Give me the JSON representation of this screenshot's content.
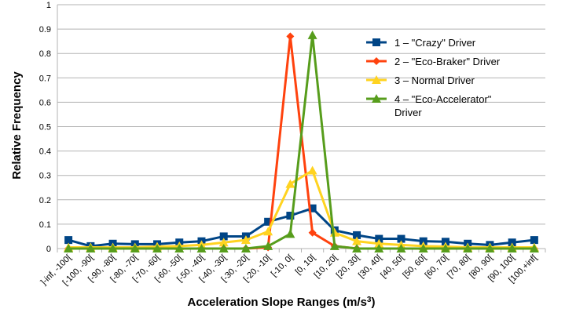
{
  "chart_data": {
    "type": "line",
    "title": "",
    "xlabel": "Acceleration Slope Ranges (m/s³)",
    "ylabel": "Relative Frequency",
    "ylim": [
      0,
      1
    ],
    "yticks": [
      "0",
      "0.1",
      "0.2",
      "0.3",
      "0.4",
      "0.5",
      "0.6",
      "0.7",
      "0.8",
      "0.9",
      "1"
    ],
    "grid": true,
    "legend_position": "top-right",
    "categories": [
      "]-inf, -100[",
      "[-100, -90[",
      "[-90, -80[",
      "[-80, -70[",
      "[-70, -60[",
      "[-60, -50[",
      "[-50, -40[",
      "[-40, -30[",
      "[-30, -20[",
      "[-20, -10[",
      "[-10, 0[",
      "[0, 10[",
      "[10, 20[",
      "[20, 30[",
      "[30, 40[",
      "[40, 50[",
      "[50, 60[",
      "[60, 70[",
      "[70, 80[",
      "[80, 90[",
      "[90, 100[",
      "[100,+inf["
    ],
    "series": [
      {
        "name": "1 – \"Crazy\" Driver",
        "color": "#004586",
        "marker": "square",
        "values": [
          0.035,
          0.01,
          0.02,
          0.018,
          0.018,
          0.025,
          0.03,
          0.05,
          0.05,
          0.11,
          0.135,
          0.165,
          0.075,
          0.055,
          0.04,
          0.04,
          0.03,
          0.028,
          0.02,
          0.015,
          0.025,
          0.035
        ]
      },
      {
        "name": "2 – \"Eco-Braker\" Driver",
        "color": "#ff420e",
        "marker": "diamond",
        "values": [
          0.0,
          0.0,
          0.0,
          0.0,
          0.0,
          0.0,
          0.0,
          0.0,
          0.0,
          0.005,
          0.87,
          0.065,
          0.01,
          0.0,
          0.0,
          0.0,
          0.0,
          0.0,
          0.0,
          0.0,
          0.0,
          0.0
        ]
      },
      {
        "name": "3 – Normal Driver",
        "color": "#ffd320",
        "marker": "triangle",
        "values": [
          0.005,
          0.005,
          0.005,
          0.005,
          0.008,
          0.01,
          0.015,
          0.025,
          0.035,
          0.07,
          0.265,
          0.32,
          0.065,
          0.03,
          0.02,
          0.015,
          0.01,
          0.008,
          0.005,
          0.005,
          0.005,
          0.005
        ]
      },
      {
        "name": "4 – \"Eco-Accelerator\" Driver",
        "color": "#579d1c",
        "marker": "triangle",
        "values": [
          0.0,
          0.0,
          0.0,
          0.0,
          0.0,
          0.0,
          0.0,
          0.0,
          0.0,
          0.01,
          0.06,
          0.875,
          0.01,
          0.0,
          0.0,
          0.0,
          0.0,
          0.0,
          0.0,
          0.0,
          0.0,
          0.0
        ]
      }
    ]
  }
}
